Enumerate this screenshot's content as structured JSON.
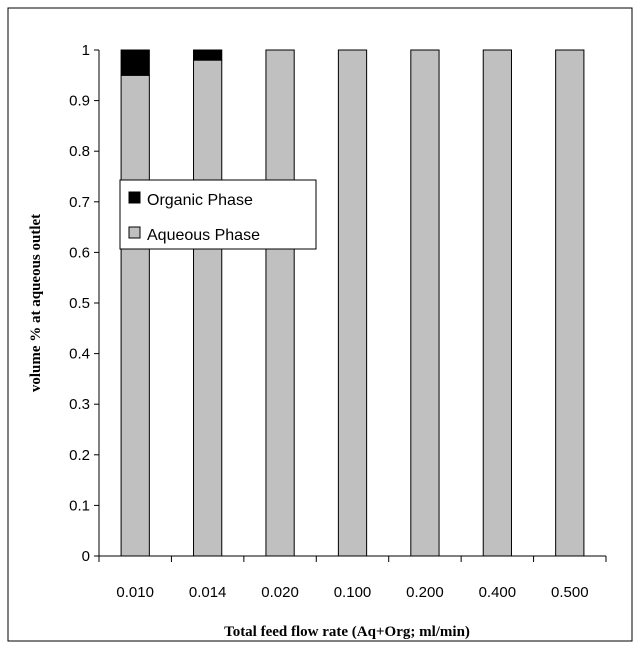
{
  "chart_data": {
    "type": "bar",
    "stacked": true,
    "categories": [
      "0.010",
      "0.014",
      "0.020",
      "0.100",
      "0.200",
      "0.400",
      "0.500"
    ],
    "series": [
      {
        "name": "Aqueous Phase",
        "values": [
          0.95,
          0.98,
          1.0,
          1.0,
          1.0,
          1.0,
          1.0
        ],
        "color": "#c0c0c0"
      },
      {
        "name": "Organic Phase",
        "values": [
          0.05,
          0.02,
          0.0,
          0.0,
          0.0,
          0.0,
          0.0
        ],
        "color": "#000000"
      }
    ],
    "xlabel": "Total feed flow rate (Aq+Org; ml/min)",
    "ylabel": "volume % at aqueous outlet",
    "ylim": [
      0,
      1
    ],
    "yticks": [
      "0",
      "0.1",
      "0.2",
      "0.3",
      "0.4",
      "0.5",
      "0.6",
      "0.7",
      "0.8",
      "0.9",
      "1"
    ],
    "grid": false,
    "legend_position": "left"
  }
}
